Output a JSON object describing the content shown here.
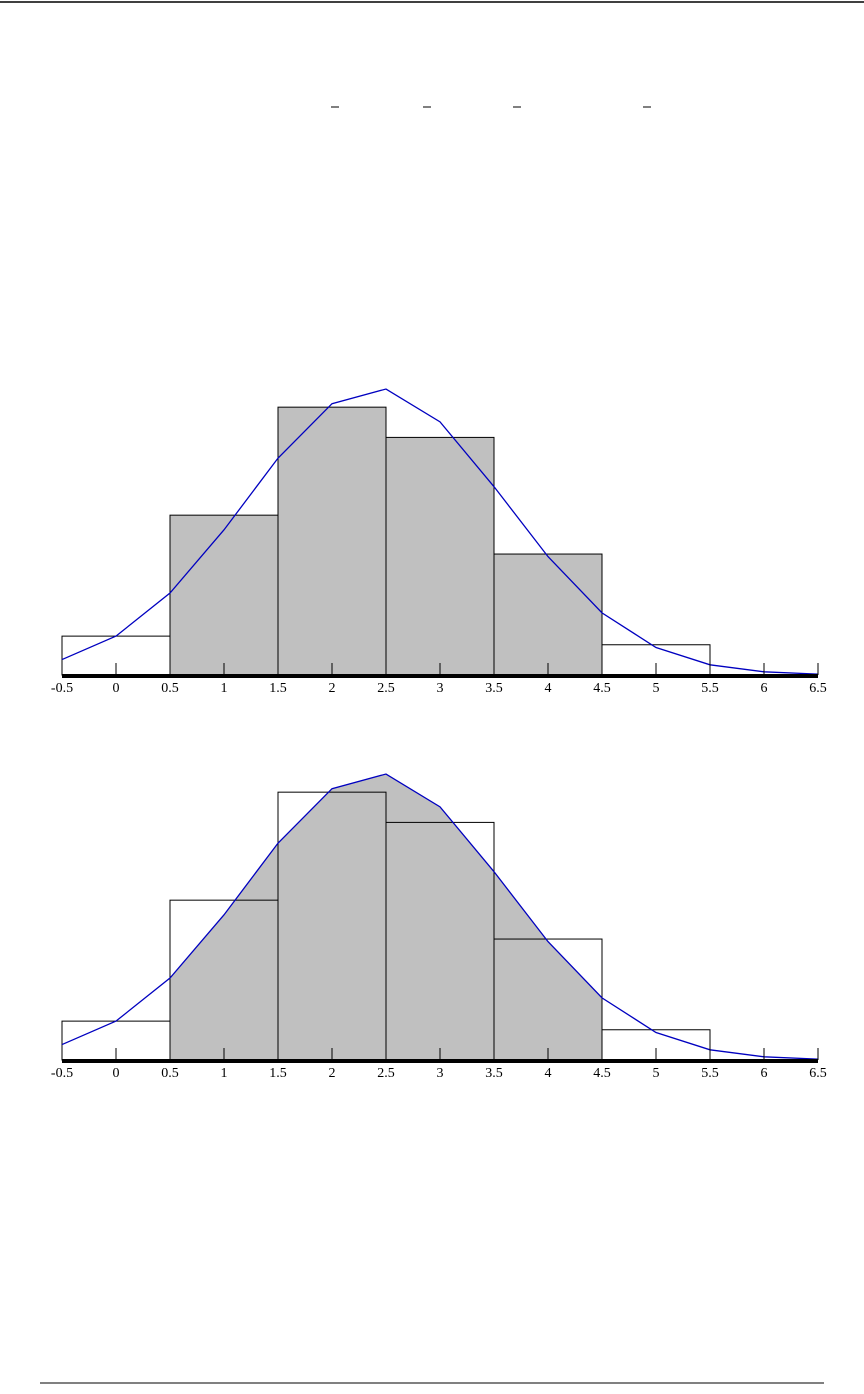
{
  "chart_data": [
    {
      "type": "histogram",
      "shaded": "bars",
      "shade_range": [
        0.5,
        4.5
      ],
      "bins": [
        -0.5,
        0.5,
        1.5,
        2.5,
        3.5,
        4.5,
        5.5
      ],
      "values": [
        0.045,
        0.185,
        0.31,
        0.275,
        0.14,
        0.035
      ],
      "curve": {
        "color": "#0000c0",
        "x": [
          -0.5,
          0,
          0.5,
          1,
          1.5,
          2,
          2.5,
          3,
          3.5,
          4,
          4.5,
          5,
          5.5,
          6,
          6.5
        ],
        "values": [
          0.0179,
          0.045,
          0.0949,
          0.168,
          0.251,
          0.314,
          0.331,
          0.293,
          0.218,
          0.137,
          0.0719,
          0.0318,
          0.0118,
          0.0037,
          0.00097
        ]
      },
      "fill": "#c0c0c0",
      "xlim": [
        -0.5,
        6.5
      ],
      "ylim": [
        0,
        0.34
      ],
      "xticks": [
        -0.5,
        0,
        0.5,
        1,
        1.5,
        2,
        2.5,
        3,
        3.5,
        4,
        4.5,
        5,
        5.5,
        6,
        6.5
      ]
    },
    {
      "type": "histogram",
      "shaded": "curve",
      "shade_range": [
        0.5,
        4.5
      ],
      "bins": [
        -0.5,
        0.5,
        1.5,
        2.5,
        3.5,
        4.5,
        5.5
      ],
      "values": [
        0.045,
        0.185,
        0.31,
        0.275,
        0.14,
        0.035
      ],
      "curve": {
        "color": "#0000c0",
        "x": [
          -0.5,
          0,
          0.5,
          1,
          1.5,
          2,
          2.5,
          3,
          3.5,
          4,
          4.5,
          5,
          5.5,
          6,
          6.5
        ],
        "values": [
          0.0179,
          0.045,
          0.0949,
          0.168,
          0.251,
          0.314,
          0.331,
          0.293,
          0.218,
          0.137,
          0.0719,
          0.0318,
          0.0118,
          0.0037,
          0.00097
        ]
      },
      "fill": "#c0c0c0",
      "xlim": [
        -0.5,
        6.5
      ],
      "ylim": [
        0,
        0.34
      ],
      "xticks": [
        -0.5,
        0,
        0.5,
        1,
        1.5,
        2,
        2.5,
        3,
        3.5,
        4,
        4.5,
        5,
        5.5,
        6,
        6.5
      ]
    }
  ]
}
